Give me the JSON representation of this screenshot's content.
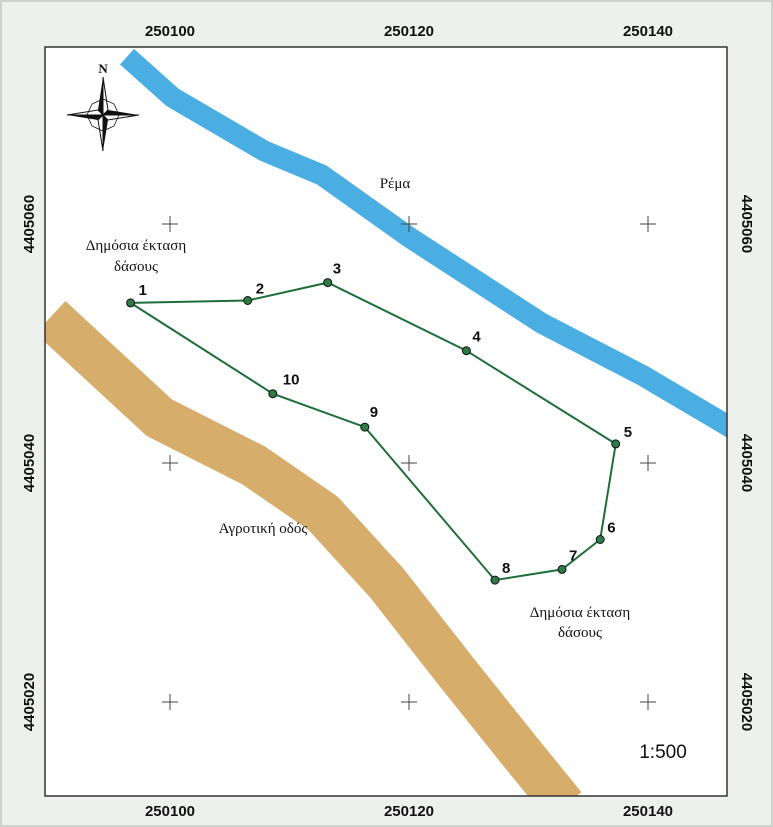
{
  "map": {
    "scale_label": "1:500",
    "north_label": "N",
    "x_ticks": [
      "250100",
      "250120",
      "250140"
    ],
    "y_ticks": [
      "4405060",
      "4405040",
      "4405020"
    ],
    "labels": {
      "stream": "Ρέμα",
      "forest_nw_line1": "Δημόσια έκταση",
      "forest_nw_line2": "δάσους",
      "forest_se_line1": "Δημόσια έκταση",
      "forest_se_line2": "δάσους",
      "road": "Αγροτική οδός"
    },
    "parcel_points": [
      {
        "id": "1",
        "x": 250096.7,
        "y": 4405053.4
      },
      {
        "id": "2",
        "x": 250106.5,
        "y": 4405053.6
      },
      {
        "id": "3",
        "x": 250113.2,
        "y": 4405055.1
      },
      {
        "id": "4",
        "x": 250124.8,
        "y": 4405049.4
      },
      {
        "id": "5",
        "x": 250137.3,
        "y": 4405041.6
      },
      {
        "id": "6",
        "x": 250136.0,
        "y": 4405033.6
      },
      {
        "id": "7",
        "x": 250132.8,
        "y": 4405031.1
      },
      {
        "id": "8",
        "x": 250127.2,
        "y": 4405030.2
      },
      {
        "id": "9",
        "x": 250116.3,
        "y": 4405043.0
      },
      {
        "id": "10",
        "x": 250108.6,
        "y": 4405045.8
      }
    ],
    "grid_crosses": [
      {
        "x": 250100,
        "y": 4405060
      },
      {
        "x": 250120,
        "y": 4405060
      },
      {
        "x": 250140,
        "y": 4405060
      },
      {
        "x": 250100,
        "y": 4405040
      },
      {
        "x": 250120,
        "y": 4405040
      },
      {
        "x": 250140,
        "y": 4405040
      },
      {
        "x": 250100,
        "y": 4405020
      },
      {
        "x": 250120,
        "y": 4405020
      },
      {
        "x": 250140,
        "y": 4405020
      }
    ],
    "stream_path": [
      {
        "x": 250096.4,
        "y": 4405074.0
      },
      {
        "x": 250100.2,
        "y": 4405070.6
      },
      {
        "x": 250107.9,
        "y": 4405066.1
      },
      {
        "x": 250112.7,
        "y": 4405064.1
      },
      {
        "x": 250120.0,
        "y": 4405058.9
      },
      {
        "x": 250131.1,
        "y": 4405051.7
      },
      {
        "x": 250139.6,
        "y": 4405047.3
      },
      {
        "x": 250147.2,
        "y": 4405042.8
      }
    ],
    "road_path": [
      {
        "x": 250090.0,
        "y": 4405052.2
      },
      {
        "x": 250099.1,
        "y": 4405043.8
      },
      {
        "x": 250107.0,
        "y": 4405039.8
      },
      {
        "x": 250112.8,
        "y": 4405035.8
      },
      {
        "x": 250118.1,
        "y": 4405030.0
      },
      {
        "x": 250123.9,
        "y": 4405022.6
      },
      {
        "x": 250129.1,
        "y": 4405016.1
      },
      {
        "x": 250133.0,
        "y": 4405011.3
      }
    ],
    "colors": {
      "stream": "#4aaee3",
      "road": "#d6ad6b",
      "parcel_line": "#1f6e3a",
      "vertex_fill": "#2f7a47",
      "frame": "#333333",
      "map_bg": "#ffffff",
      "outer_bg": "#eef0ee"
    }
  }
}
